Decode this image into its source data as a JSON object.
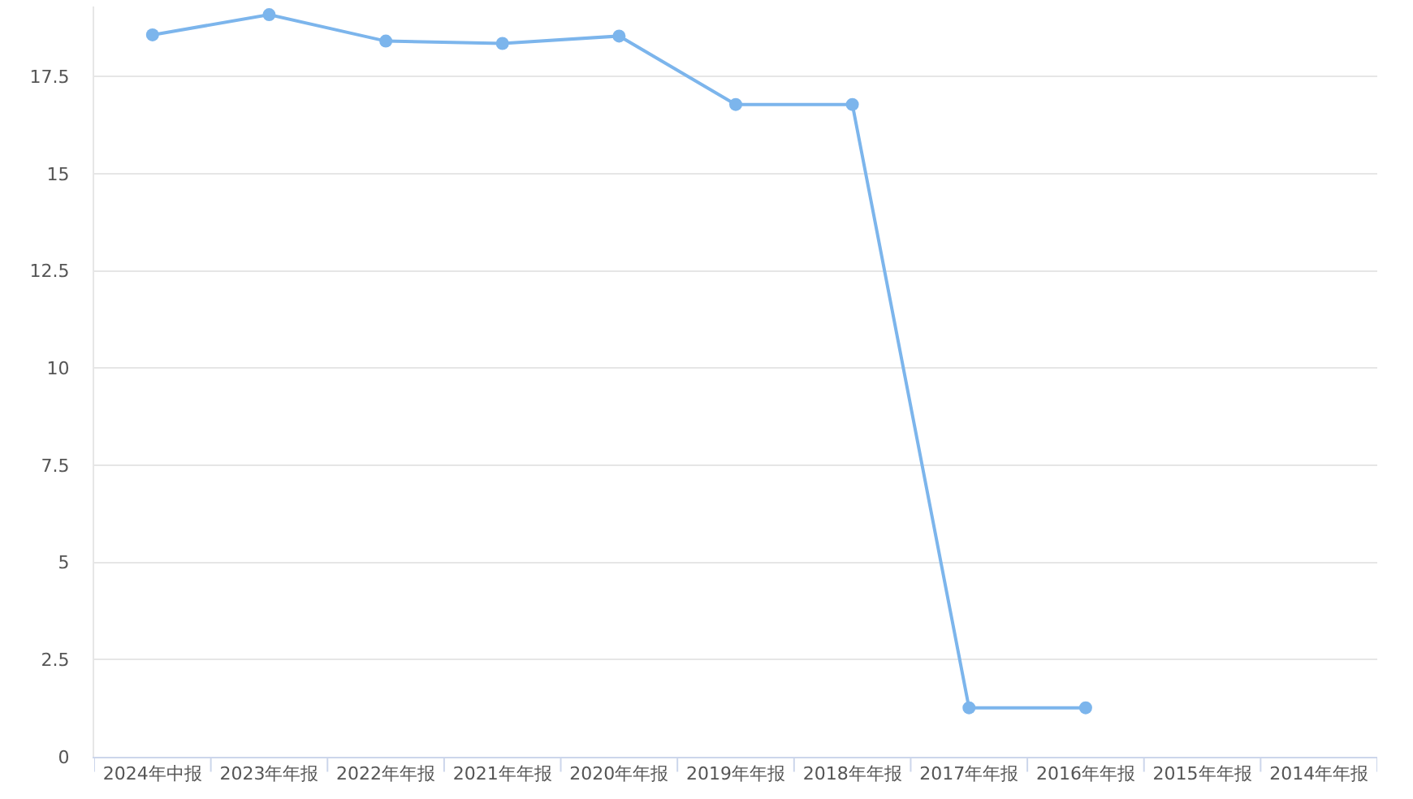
{
  "chart_data": {
    "type": "line",
    "categories": [
      "2024年中报",
      "2023年年报",
      "2022年年报",
      "2021年年报",
      "2020年年报",
      "2019年年报",
      "2018年年报",
      "2017年年报",
      "2016年年报",
      "2015年年报",
      "2014年年报"
    ],
    "series": [
      {
        "color": "#7cb5ec",
        "values": [
          18.57,
          19.09,
          18.41,
          18.35,
          18.54,
          16.78,
          16.78,
          1.26,
          1.26,
          null,
          null
        ]
      }
    ],
    "ylim": [
      0,
      19.3
    ],
    "yticks": [
      0,
      2.5,
      5,
      7.5,
      10,
      12.5,
      15,
      17.5
    ],
    "grid": "y",
    "marker": "circle",
    "line_style": "solid",
    "legend": false
  }
}
